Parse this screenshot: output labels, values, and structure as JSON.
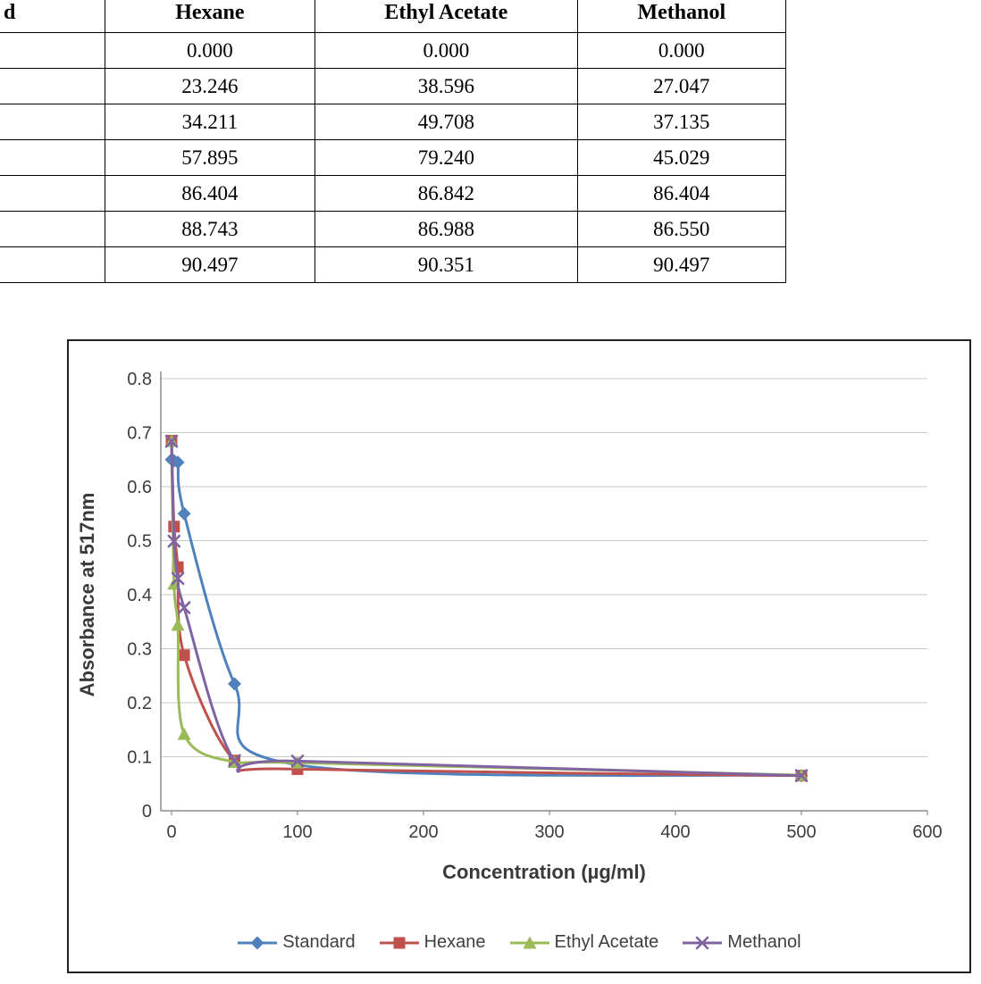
{
  "table": {
    "headers": [
      "d",
      "Hexane",
      "Ethyl Acetate",
      "Methanol"
    ],
    "rows": [
      [
        "",
        "0.000",
        "0.000",
        "0.000"
      ],
      [
        "",
        "23.246",
        "38.596",
        "27.047"
      ],
      [
        "",
        "34.211",
        "49.708",
        "37.135"
      ],
      [
        "",
        "57.895",
        "79.240",
        "45.029"
      ],
      [
        "",
        "86.404",
        "86.842",
        "86.404"
      ],
      [
        "",
        "88.743",
        "86.988",
        "86.550"
      ],
      [
        "",
        "90.497",
        "90.351",
        "90.497"
      ]
    ]
  },
  "chart_data": [
    {
      "type": "table",
      "columns": [
        "d",
        "Hexane",
        "Ethyl Acetate",
        "Methanol"
      ],
      "rows": [
        [
          "",
          0.0,
          0.0,
          0.0
        ],
        [
          "",
          23.246,
          38.596,
          27.047
        ],
        [
          "",
          34.211,
          49.708,
          37.135
        ],
        [
          "",
          57.895,
          79.24,
          45.029
        ],
        [
          "",
          86.404,
          86.842,
          86.404
        ],
        [
          "",
          88.743,
          86.988,
          86.55
        ],
        [
          "",
          90.497,
          90.351,
          90.497
        ]
      ]
    },
    {
      "type": "line",
      "title": "",
      "xlabel": "Concentration (µg/ml)",
      "ylabel": "Absorbance at 517nm",
      "xlim": [
        0,
        600
      ],
      "ylim": [
        0,
        0.8
      ],
      "xticks": [
        0,
        100,
        200,
        300,
        400,
        500,
        600
      ],
      "xtick_labels": [
        "0",
        "100",
        "200",
        "300",
        "400",
        "500",
        "600"
      ],
      "yticks": [
        0,
        0.1,
        0.2,
        0.3,
        0.4,
        0.5,
        0.6,
        0.7,
        0.8
      ],
      "ytick_labels": [
        "0",
        "0.1",
        "0.2",
        "0.3",
        "0.4",
        "0.5",
        "0.6",
        "0.7",
        "0.8"
      ],
      "grid": "horizontal",
      "legend_position": "bottom",
      "x": [
        0,
        2,
        5,
        10,
        50,
        100,
        500
      ],
      "series": [
        {
          "name": "Standard",
          "color": "#4F81BD",
          "marker": "diamond",
          "values": [
            0.65,
            0.648,
            0.645,
            0.55,
            0.235,
            0.085,
            0.065
          ]
        },
        {
          "name": "Hexane",
          "color": "#C0504D",
          "marker": "square",
          "values": [
            0.685,
            0.526,
            0.451,
            0.288,
            0.093,
            0.077,
            0.065
          ]
        },
        {
          "name": "Ethyl Acetate",
          "color": "#9BBB59",
          "marker": "triangle",
          "values": [
            0.684,
            0.42,
            0.344,
            0.142,
            0.09,
            0.089,
            0.066
          ]
        },
        {
          "name": "Methanol",
          "color": "#8064A2",
          "marker": "x",
          "values": [
            0.684,
            0.499,
            0.43,
            0.376,
            0.093,
            0.092,
            0.065
          ]
        }
      ]
    }
  ]
}
